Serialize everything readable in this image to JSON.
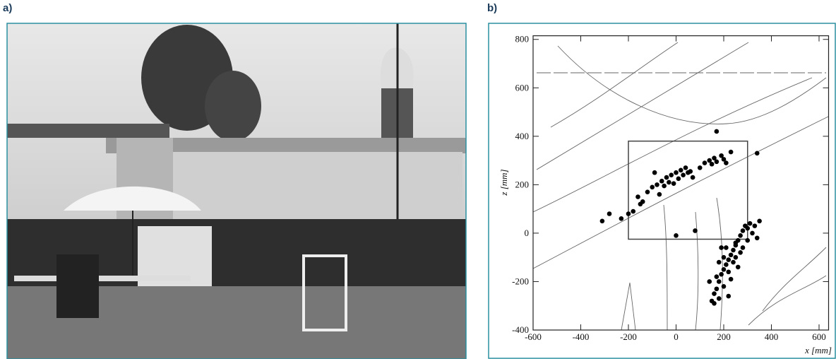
{
  "panel_a": {
    "label": "a)"
  },
  "chart_data": {
    "type": "scatter",
    "panel_label": "b)",
    "x_label": "x [mm]",
    "y_label": "z [mm]",
    "xlim": [
      -600,
      640
    ],
    "ylim": [
      -400,
      815
    ],
    "xticks": [
      -600,
      -400,
      -200,
      0,
      200,
      400,
      600
    ],
    "yticks": [
      -400,
      -200,
      0,
      200,
      400,
      600,
      800
    ],
    "color": "#000000",
    "box": {
      "x": [
        -200,
        300
      ],
      "z": [
        -25,
        380
      ]
    },
    "x": [
      -160,
      -140,
      -120,
      -100,
      -80,
      -60,
      -40,
      -30,
      -20,
      0,
      10,
      20,
      30,
      40,
      50,
      60,
      70,
      -50,
      -10,
      100,
      120,
      140,
      150,
      160,
      170,
      190,
      200,
      210,
      230,
      -180,
      -150,
      -70,
      -200,
      -230,
      -90,
      150,
      160,
      170,
      180,
      190,
      200,
      210,
      220,
      230,
      240,
      250,
      260,
      270,
      280,
      290,
      300,
      310,
      320,
      330,
      340,
      200,
      220,
      240,
      260,
      180,
      170,
      200,
      230,
      250,
      270,
      300,
      280,
      210,
      190,
      350,
      140,
      160,
      180,
      220,
      250,
      -310,
      -280,
      170,
      340,
      0,
      80
    ],
    "values": [
      150,
      130,
      170,
      190,
      200,
      215,
      230,
      210,
      240,
      250,
      225,
      260,
      240,
      270,
      250,
      255,
      230,
      195,
      205,
      270,
      290,
      300,
      285,
      310,
      295,
      320,
      305,
      290,
      335,
      90,
      120,
      160,
      80,
      60,
      250,
      -280,
      -250,
      -230,
      -200,
      -170,
      -150,
      -130,
      -110,
      -90,
      -70,
      -50,
      -30,
      -10,
      10,
      30,
      20,
      40,
      0,
      30,
      -20,
      -100,
      -160,
      -120,
      -140,
      -120,
      -180,
      -220,
      -190,
      -100,
      -80,
      -30,
      -60,
      -60,
      -60,
      50,
      -200,
      -290,
      -270,
      -260,
      -40,
      50,
      80,
      420,
      330,
      -10,
      10
    ]
  }
}
